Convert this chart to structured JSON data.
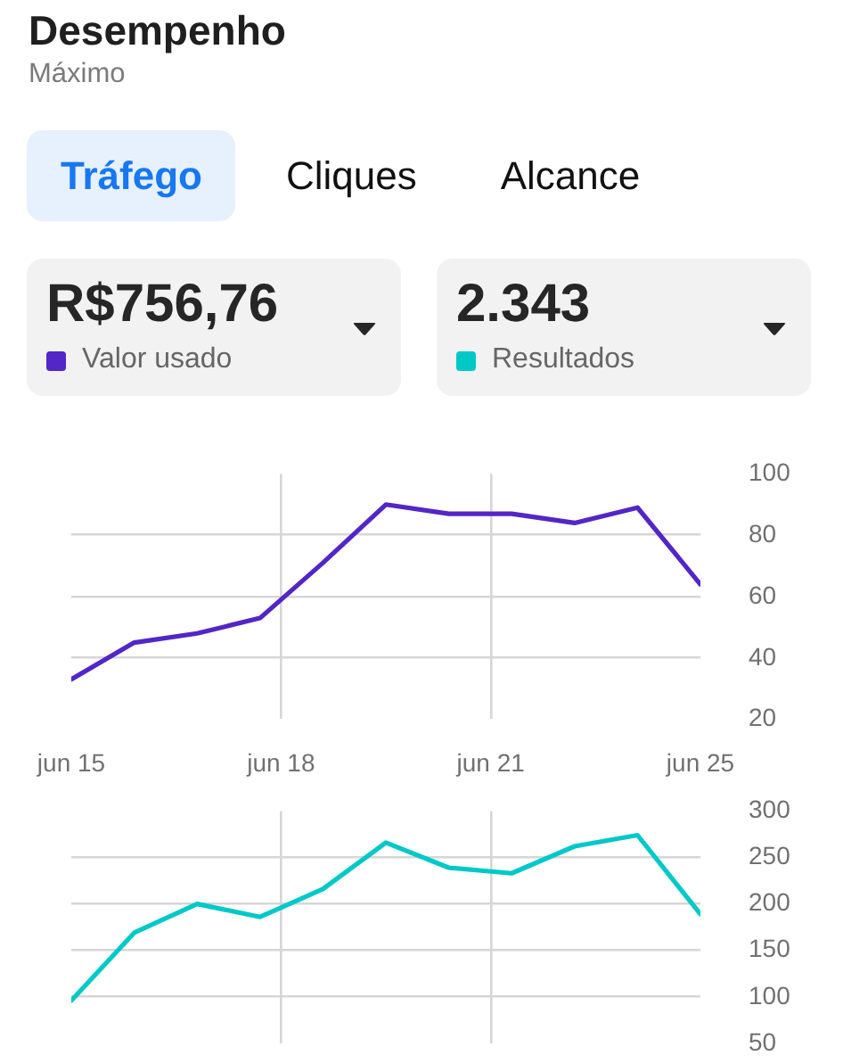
{
  "chart_data": [
    {
      "type": "line",
      "title": "Desempenho",
      "subtitle": "Máximo",
      "annotations": [
        "Tráfego",
        "Cliques",
        "Alcance",
        "R$756,76"
      ],
      "x": [
        "--06-15",
        "--06-16",
        "--06-17",
        "--06-18",
        "--06-19",
        "--06-20",
        "--06-21",
        "--06-22",
        "--06-23",
        "--06-24",
        "--06-25"
      ],
      "xlim": [
        "--06-15",
        "--06-25"
      ],
      "xticks": [
        {
          "value": "--06-15",
          "label": "jun 15"
        },
        {
          "value": "--06-18T08:00",
          "label": "jun 18"
        },
        {
          "value": "--06-21T16:00",
          "label": "jun 21"
        },
        {
          "value": "--06-25",
          "label": "jun 25"
        }
      ],
      "ylim": [
        20,
        100
      ],
      "yticks": [
        20,
        40,
        60,
        80,
        100
      ],
      "grid": true,
      "legend": "top",
      "series": [
        {
          "name": "Valor usado",
          "color": "#5326c6",
          "values": [
            33,
            45,
            48,
            53,
            71,
            90,
            87,
            87,
            84,
            89,
            64
          ]
        }
      ]
    },
    {
      "type": "line",
      "annotations": [
        "2.343"
      ],
      "x": [
        "--06-15",
        "--06-16",
        "--06-17",
        "--06-18",
        "--06-19",
        "--06-20",
        "--06-21",
        "--06-22",
        "--06-23",
        "--06-24",
        "--06-25"
      ],
      "xlim": [
        "--06-15",
        "--06-25"
      ],
      "xticks": [
        {
          "value": "--06-15",
          "label": null
        },
        {
          "value": "--06-18T08:00",
          "label": null
        },
        {
          "value": "--06-21T16:00",
          "label": null
        },
        {
          "value": "--06-25",
          "label": null
        }
      ],
      "tick_labels": "y",
      "ylim": [
        50,
        300
      ],
      "yticks": [
        50,
        100,
        150,
        200,
        250,
        300
      ],
      "grid": true,
      "legend": "top",
      "series": [
        {
          "name": "Resultados",
          "color": "#00c8c8",
          "values": [
            96,
            169,
            200,
            186,
            216,
            266,
            239,
            233,
            262,
            274,
            189
          ]
        }
      ]
    }
  ]
}
